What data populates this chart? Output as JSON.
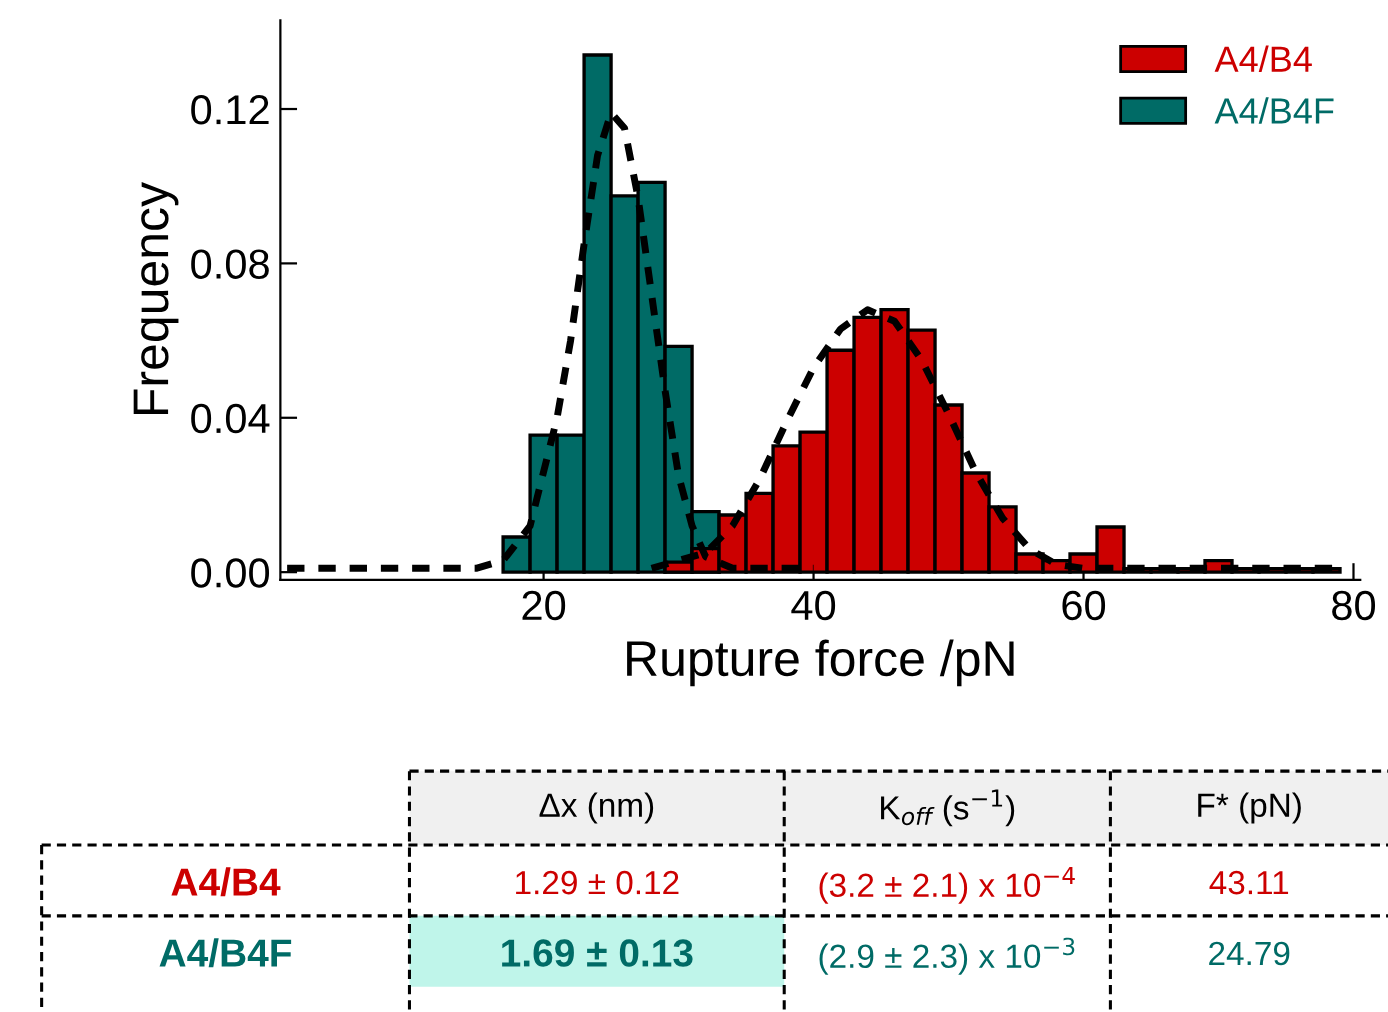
{
  "chart_data": {
    "type": "histogram",
    "xlabel": "Rupture force /pN",
    "ylabel": "Frequency",
    "xlim": [
      0.5,
      80.5
    ],
    "xticks": [
      20,
      40,
      60,
      80
    ],
    "ylim": [
      -0.002,
      0.143
    ],
    "yticks": [
      {
        "value": 0,
        "label": "0.00"
      },
      {
        "value": 0.04,
        "label": "0.04"
      },
      {
        "value": 0.08,
        "label": "0.08"
      },
      {
        "value": 0.12,
        "label": "0.12"
      }
    ],
    "legend": "top right",
    "grid": false,
    "series": [
      {
        "name": "A4/B4",
        "color": "#cc0000",
        "bins": [
          29,
          31,
          33,
          35,
          37,
          39,
          41,
          43,
          45,
          47,
          49,
          51,
          53,
          55,
          57,
          59,
          61,
          63,
          65,
          67,
          69,
          71,
          73,
          75,
          77,
          79
        ],
        "values": [
          0.0026,
          0.0061,
          0.0148,
          0.0204,
          0.0327,
          0.0363,
          0.0575,
          0.066,
          0.068,
          0.0627,
          0.0433,
          0.0257,
          0.0169,
          0.0047,
          0.003,
          0.0047,
          0.0117,
          0.0009,
          0.0009,
          0.0009,
          0.003,
          0.0009,
          0.0009,
          0.0009,
          0.0009
        ]
      },
      {
        "name": "A4/B4F",
        "color": "#006b66",
        "bins": [
          17,
          19,
          21,
          23,
          25,
          27,
          29,
          31,
          33
        ],
        "values": [
          0.0091,
          0.0355,
          0.0355,
          0.134,
          0.0975,
          0.101,
          0.0585,
          0.0157
        ]
      },
      {
        "type": "line",
        "color": "#000000",
        "line_style": "dashed",
        "x": [
          1,
          15,
          17,
          19,
          21,
          22,
          23,
          24,
          25,
          26,
          27,
          28,
          29,
          30,
          31,
          32,
          34,
          40
        ],
        "values": [
          0.001,
          0.001,
          0.003,
          0.012,
          0.04,
          0.06,
          0.085,
          0.108,
          0.119,
          0.115,
          0.097,
          0.072,
          0.047,
          0.025,
          0.012,
          0.004,
          0.001,
          0.001
        ]
      },
      {
        "type": "line",
        "color": "#000000",
        "line_style": "dashed",
        "x": [
          28,
          32,
          34,
          36,
          38,
          40,
          42,
          44,
          46,
          48,
          50,
          52,
          54,
          56,
          58,
          60,
          79
        ],
        "values": [
          0.001,
          0.005,
          0.012,
          0.024,
          0.039,
          0.053,
          0.063,
          0.068,
          0.065,
          0.055,
          0.041,
          0.026,
          0.014,
          0.006,
          0.002,
          0.001,
          0.001
        ]
      }
    ],
    "annotations": [
      "Δx (nm)",
      "K$_{off}$ (s$^{−1}$)",
      "F* (pN)",
      "A4/B4",
      "1.29 ± 0.12",
      "(3.2 ± 2.1) x 10$^{−4}$",
      "43.11",
      "A4/B4F",
      "1.69 ± 0.13",
      "(2.9 ± 2.3) x 10$^{−3}$",
      "24.79"
    ]
  }
}
